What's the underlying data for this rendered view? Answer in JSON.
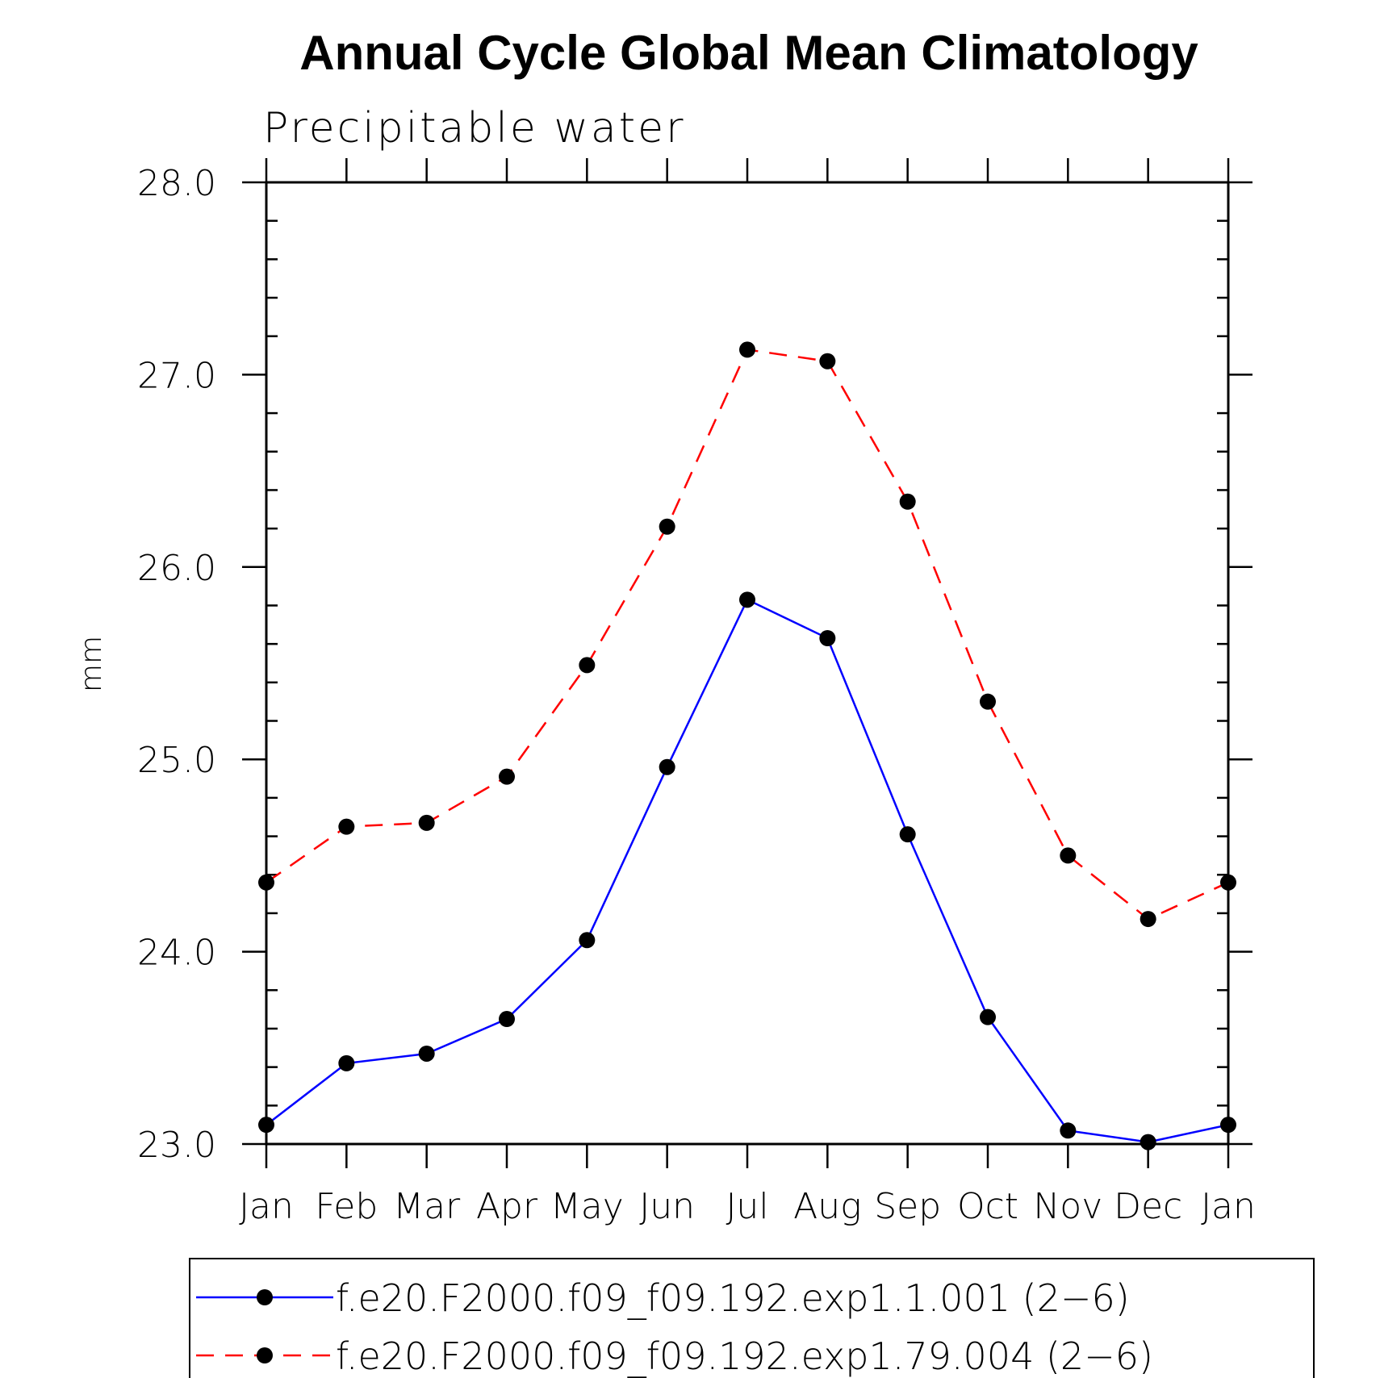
{
  "chart_data": {
    "type": "line",
    "title": "Annual Cycle Global Mean Climatology",
    "subtitle": "Precipitable water",
    "ylabel": "mm",
    "xlabel": "",
    "categories": [
      "Jan",
      "Feb",
      "Mar",
      "Apr",
      "May",
      "Jun",
      "Jul",
      "Aug",
      "Sep",
      "Oct",
      "Nov",
      "Dec",
      "Jan"
    ],
    "ylim": [
      23.0,
      28.0
    ],
    "yticks": [
      "23.0",
      "24.0",
      "25.0",
      "26.0",
      "27.0",
      "28.0"
    ],
    "grid": false,
    "legend_position": "bottom",
    "series": [
      {
        "name": "f.e20.F2000.f09_f09.192.exp1.1.001 (2−6)",
        "color": "#0000ff",
        "line_style": "solid",
        "marker": "filled-circle",
        "values": [
          23.1,
          23.42,
          23.47,
          23.65,
          24.06,
          24.96,
          25.83,
          25.63,
          24.61,
          23.66,
          23.07,
          23.01,
          23.1
        ]
      },
      {
        "name": "f.e20.F2000.f09_f09.192.exp1.79.004 (2−6)",
        "color": "#ff0000",
        "line_style": "dashed",
        "marker": "filled-circle",
        "values": [
          24.36,
          24.65,
          24.67,
          24.91,
          25.49,
          26.21,
          27.13,
          27.07,
          26.34,
          25.3,
          24.5,
          24.17,
          24.36
        ]
      }
    ]
  }
}
